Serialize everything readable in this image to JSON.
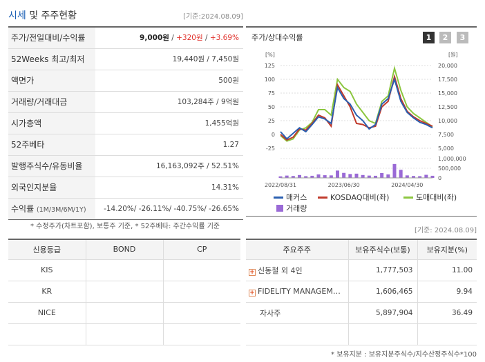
{
  "header": {
    "title_highlight": "시세",
    "title_rest": " 및 주주현황",
    "date": "[기준:2024.08.09]"
  },
  "info_rows": [
    {
      "label": "주가/전일대비/수익률"
    },
    {
      "label": "52Weeks 최고/최저",
      "value": "19,440원 / 7,450원"
    },
    {
      "label": "액면가",
      "value": "500원"
    },
    {
      "label": "거래량/거래대금",
      "value": "103,284주 / 9억원"
    },
    {
      "label": "시가총액",
      "value": "1,455억원"
    },
    {
      "label": "52주베타",
      "value": "1.27"
    },
    {
      "label": "발행주식수/유동비율",
      "value": "16,163,092주 / 52.51%"
    },
    {
      "label": "외국인지분율",
      "value": "14.31%"
    },
    {
      "label": "수익률",
      "label_sub": "(1M/3M/6M/1Y)",
      "value": "-14.20%/ -26.11%/ -40.75%/ -26.65%"
    }
  ],
  "price": {
    "value": "9,000원",
    "sep1": " / ",
    "change": "+320원",
    "sep2": " / ",
    "rate": "+3.69%"
  },
  "notes": {
    "left": "* 수정주가(차트포함), 보통주 기준, * 52주베타: 주간수익률 기준",
    "right_date": "[기준: 2024.08.09]",
    "bottom": "* 보유지분 : 보유지분주식수/지수산정주식수*100"
  },
  "chart": {
    "title": "주가/상대수익률",
    "pages": [
      "1",
      "2",
      "3"
    ],
    "left_unit": "[%]",
    "right_unit": "[원]",
    "left_ticks": [
      "125",
      "100",
      "75",
      "50",
      "25",
      "0",
      "-25"
    ],
    "right_ticks": [
      "20,000",
      "17,500",
      "15,000",
      "12,500",
      "10,000",
      "7,500",
      "5,000"
    ],
    "volume_ticks": [
      "1,000,000",
      "500,000",
      "0"
    ],
    "x_ticks": [
      "2022/08/31",
      "2023/06/30",
      "2024/04/30"
    ],
    "legend": {
      "s1": "매커스",
      "s2": "KOSDAQ대비(좌)",
      "s3": "도매대비(좌)",
      "s4": "거래량"
    },
    "colors": {
      "s1": "#2a5fb0",
      "s2": "#c0392b",
      "s3": "#8cc63f",
      "vol": "#9a6ad6"
    }
  },
  "chart_data": {
    "type": "line",
    "x": [
      "2022/08",
      "2022/09",
      "2022/10",
      "2022/11",
      "2022/12",
      "2023/01",
      "2023/02",
      "2023/03",
      "2023/04",
      "2023/05",
      "2023/06",
      "2023/07",
      "2023/08",
      "2023/09",
      "2023/10",
      "2023/11",
      "2023/12",
      "2024/01",
      "2024/02",
      "2024/03",
      "2024/04",
      "2024/05",
      "2024/06",
      "2024/07",
      "2024/08"
    ],
    "ylim": [
      -25,
      125
    ],
    "series": [
      {
        "name": "매커스",
        "values": [
          5,
          -8,
          2,
          12,
          5,
          18,
          32,
          28,
          20,
          85,
          65,
          55,
          35,
          25,
          10,
          18,
          55,
          65,
          100,
          60,
          40,
          30,
          22,
          18,
          12
        ]
      },
      {
        "name": "KOSDAQ대비(좌)",
        "values": [
          0,
          -10,
          -5,
          10,
          8,
          20,
          35,
          30,
          15,
          90,
          70,
          50,
          20,
          18,
          12,
          15,
          50,
          60,
          105,
          65,
          42,
          32,
          25,
          20,
          15
        ]
      },
      {
        "name": "도매대비(좌)",
        "values": [
          -2,
          -12,
          -8,
          8,
          12,
          22,
          45,
          45,
          35,
          100,
          85,
          78,
          55,
          40,
          25,
          20,
          60,
          70,
          120,
          80,
          50,
          38,
          30,
          22,
          14
        ]
      },
      {
        "name": "거래량",
        "values": [
          80000,
          120000,
          100000,
          150000,
          90000,
          110000,
          180000,
          140000,
          130000,
          380000,
          260000,
          200000,
          220000,
          150000,
          120000,
          110000,
          250000,
          180000,
          720000,
          420000,
          130000,
          100000,
          90000,
          160000,
          110000
        ]
      }
    ]
  },
  "credit": {
    "headers": [
      "신용등급",
      "BOND",
      "CP"
    ],
    "rows": [
      [
        "KIS",
        "",
        ""
      ],
      [
        "KR",
        "",
        ""
      ],
      [
        "NICE",
        "",
        ""
      ],
      [
        "",
        "",
        ""
      ]
    ]
  },
  "holders": {
    "headers": [
      "주요주주",
      "보유주식수(보통)",
      "보유지분(%)"
    ],
    "rows": [
      {
        "name": "신동철 외 4인",
        "shares": "1,777,503",
        "pct": "11.00",
        "expand": true
      },
      {
        "name": "FIDELITY MANAGEM…",
        "shares": "1,606,465",
        "pct": "9.94",
        "expand": true
      },
      {
        "name": "자사주",
        "shares": "5,897,904",
        "pct": "36.49",
        "expand": false
      },
      {
        "name": "",
        "shares": "",
        "pct": "",
        "expand": false
      }
    ]
  }
}
